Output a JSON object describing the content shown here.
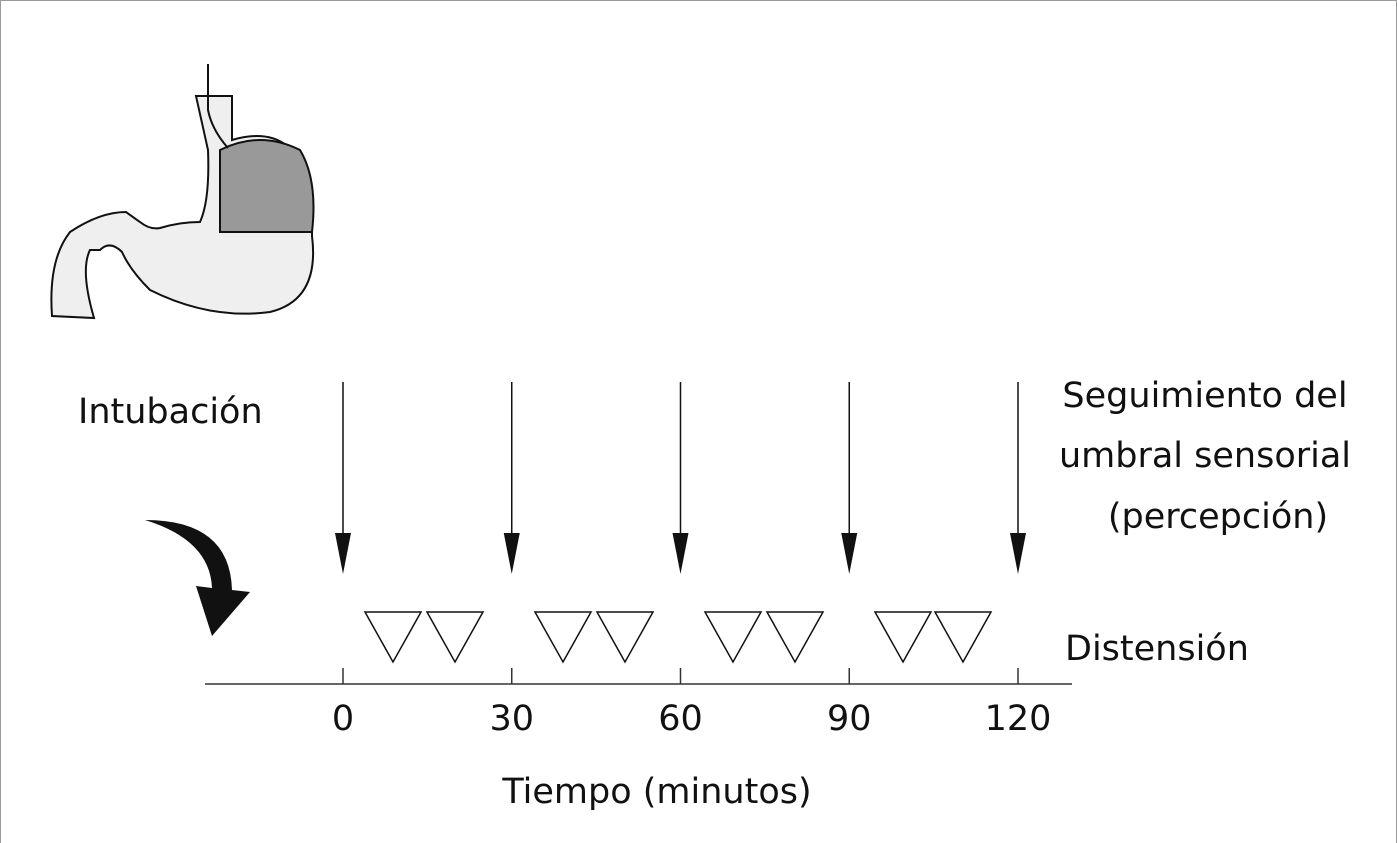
{
  "labels": {
    "intubation": "Intubación",
    "tracking": [
      "Seguimiento del",
      "umbral sensorial",
      "(percepción)"
    ],
    "distension": "Distensión"
  },
  "axis": {
    "title": "Tiempo (minutos)",
    "ticks": [
      0,
      30,
      60,
      90,
      120
    ]
  }
}
